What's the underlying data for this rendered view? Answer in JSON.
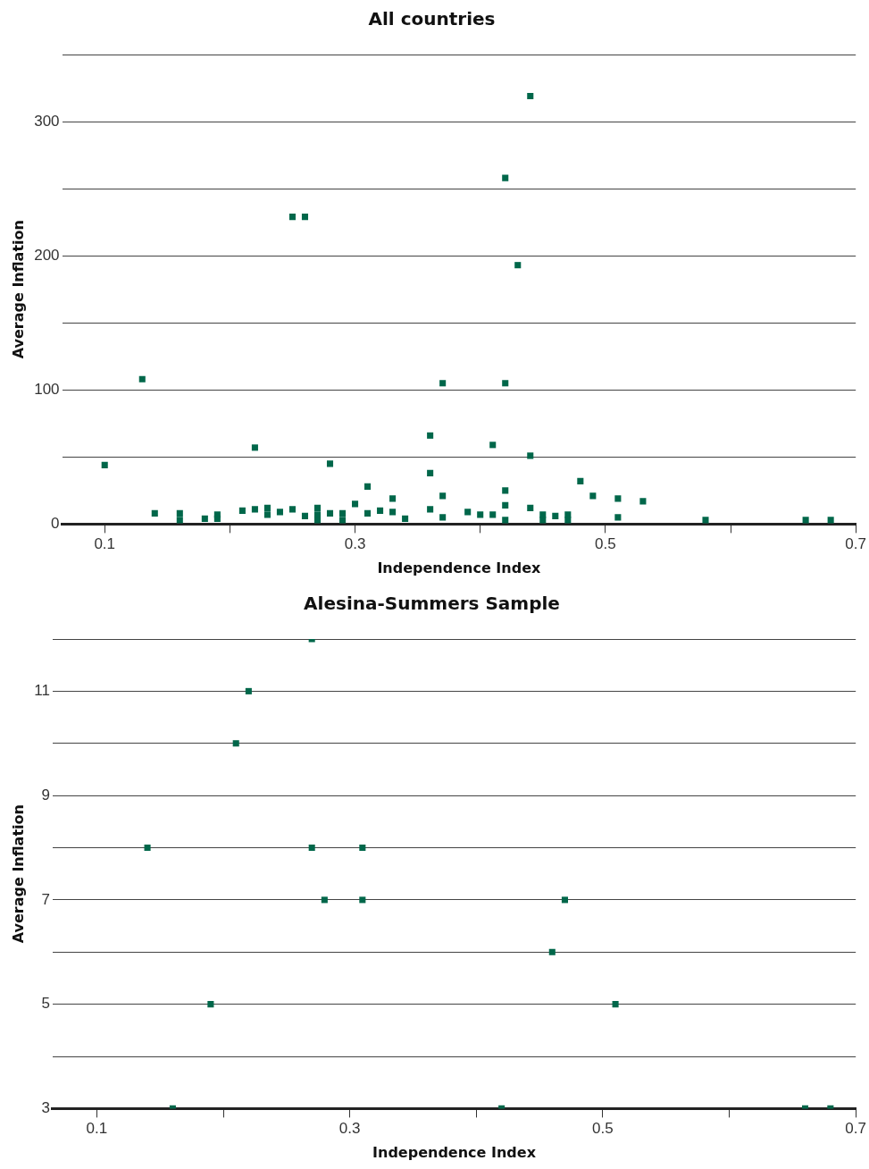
{
  "chart_data": [
    {
      "type": "scatter",
      "title": "All countries",
      "xlabel": "Independence Index",
      "ylabel": "Average Inflation",
      "color": "#00674a",
      "marker": "square",
      "grid": "y",
      "x": [
        0.44,
        0.42,
        0.25,
        0.26,
        0.43,
        0.13,
        0.37,
        0.42,
        0.1,
        0.22,
        0.14,
        0.16,
        0.16,
        0.18,
        0.19,
        0.19,
        0.21,
        0.22,
        0.23,
        0.23,
        0.24,
        0.25,
        0.26,
        0.27,
        0.27,
        0.27,
        0.28,
        0.28,
        0.29,
        0.29,
        0.3,
        0.31,
        0.31,
        0.32,
        0.33,
        0.33,
        0.34,
        0.36,
        0.36,
        0.36,
        0.37,
        0.37,
        0.39,
        0.4,
        0.41,
        0.41,
        0.42,
        0.42,
        0.42,
        0.44,
        0.44,
        0.45,
        0.45,
        0.46,
        0.47,
        0.47,
        0.48,
        0.49,
        0.51,
        0.51,
        0.53,
        0.58,
        0.66,
        0.68
      ],
      "values": [
        319,
        258,
        229,
        229,
        193,
        108,
        105,
        105,
        44,
        57,
        8,
        8,
        3,
        4,
        7,
        4,
        10,
        11,
        12,
        7,
        9,
        11,
        6,
        12,
        7,
        3,
        45,
        8,
        8,
        3,
        15,
        28,
        8,
        10,
        19,
        9,
        4,
        66,
        38,
        11,
        21,
        5,
        9,
        7,
        59,
        7,
        25,
        14,
        3,
        51,
        12,
        7,
        3,
        6,
        7,
        3,
        32,
        21,
        19,
        5,
        17,
        3,
        3,
        3
      ],
      "xlim": [
        0.066,
        0.7
      ],
      "xticks": [
        0.1,
        {
          "value": 0.2,
          "label": null
        },
        0.3,
        {
          "value": 0.4,
          "label": null
        },
        0.5,
        {
          "value": 0.6,
          "label": null
        },
        0.7
      ],
      "ylim": [
        0,
        350
      ],
      "yticks": [
        0,
        {
          "value": 50,
          "label": null
        },
        100,
        {
          "value": 150,
          "label": null
        },
        200,
        {
          "value": 250,
          "label": null
        },
        300,
        {
          "value": 350,
          "label": null
        }
      ]
    },
    {
      "type": "scatter",
      "title": "Alesina-Summers Sample",
      "xlabel": "Independence Index",
      "ylabel": "Average Inflation",
      "color": "#00674a",
      "marker": "square",
      "grid": "y",
      "x": [
        0.27,
        0.22,
        0.21,
        0.14,
        0.27,
        0.31,
        0.28,
        0.31,
        0.47,
        0.46,
        0.19,
        0.51,
        0.16,
        0.42,
        0.66,
        0.68
      ],
      "values": [
        12,
        11,
        10,
        8,
        8,
        8,
        7,
        7,
        7,
        6,
        5,
        5,
        3,
        3,
        3,
        3
      ],
      "xlim": [
        0.065,
        0.7
      ],
      "xticks": [
        0.1,
        {
          "value": 0.2,
          "label": null
        },
        0.3,
        {
          "value": 0.4,
          "label": null
        },
        0.5,
        {
          "value": 0.6,
          "label": null
        },
        0.7
      ],
      "ylim": [
        3,
        12
      ],
      "yticks": [
        3,
        {
          "value": 4,
          "label": null
        },
        5,
        {
          "value": 6,
          "label": null
        },
        7,
        {
          "value": 8,
          "label": null
        },
        9,
        {
          "value": 10,
          "label": null
        },
        11,
        {
          "value": 12,
          "label": null
        }
      ]
    }
  ]
}
